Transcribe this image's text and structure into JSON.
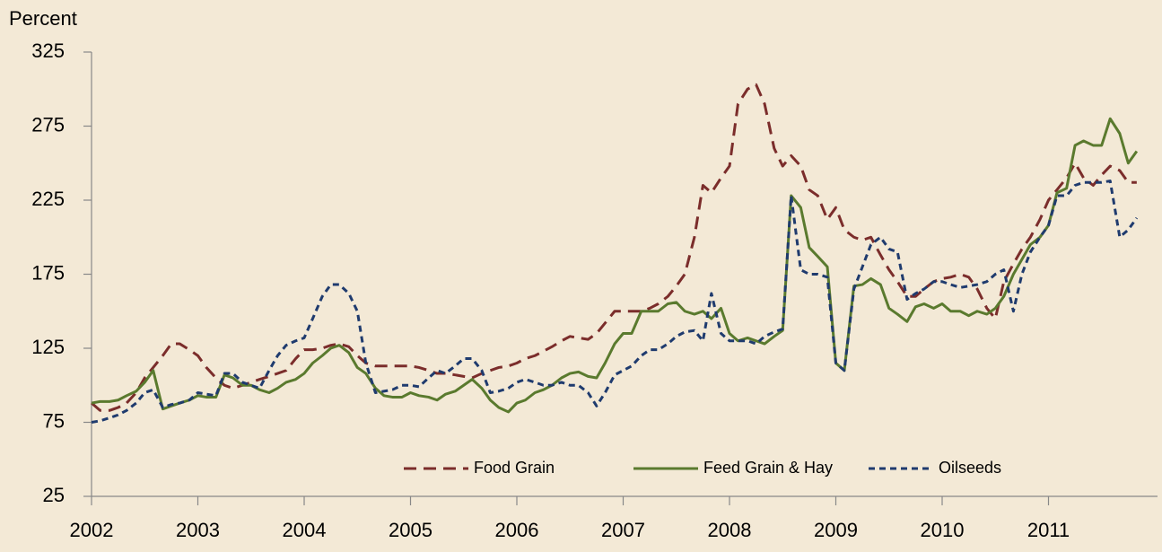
{
  "chart_data": {
    "type": "line",
    "ylabel": "Percent",
    "xlim": [
      2002,
      2012
    ],
    "xticks": [
      2002,
      2003,
      2004,
      2005,
      2006,
      2007,
      2008,
      2009,
      2010,
      2011
    ],
    "ylim": [
      25,
      325
    ],
    "yticks": [
      25,
      75,
      125,
      175,
      225,
      275,
      325
    ],
    "grid": false,
    "legend": "bottom",
    "x": [
      2002,
      2002.08,
      2002.17,
      2002.25,
      2002.33,
      2002.42,
      2002.5,
      2002.58,
      2002.67,
      2002.75,
      2002.83,
      2002.92,
      2003,
      2003.08,
      2003.17,
      2003.25,
      2003.33,
      2003.42,
      2003.5,
      2003.58,
      2003.67,
      2003.75,
      2003.83,
      2003.92,
      2004,
      2004.08,
      2004.17,
      2004.25,
      2004.33,
      2004.42,
      2004.5,
      2004.58,
      2004.67,
      2004.75,
      2004.83,
      2004.92,
      2005,
      2005.08,
      2005.17,
      2005.25,
      2005.33,
      2005.42,
      2005.5,
      2005.58,
      2005.67,
      2005.75,
      2005.83,
      2005.92,
      2006,
      2006.08,
      2006.17,
      2006.25,
      2006.33,
      2006.42,
      2006.5,
      2006.58,
      2006.67,
      2006.75,
      2006.83,
      2006.92,
      2007,
      2007.08,
      2007.17,
      2007.25,
      2007.33,
      2007.42,
      2007.5,
      2007.58,
      2007.67,
      2007.75,
      2007.83,
      2007.92,
      2008,
      2008.08,
      2008.17,
      2008.25,
      2008.33,
      2008.42,
      2008.5,
      2008.58,
      2008.67,
      2008.75,
      2008.83,
      2008.92,
      2009,
      2009.08,
      2009.17,
      2009.25,
      2009.33,
      2009.42,
      2009.5,
      2009.58,
      2009.67,
      2009.75,
      2009.83,
      2009.92,
      2010,
      2010.08,
      2010.17,
      2010.25,
      2010.33,
      2010.42,
      2010.5,
      2010.58,
      2010.67,
      2010.75,
      2010.83,
      2010.92,
      2011,
      2011.08,
      2011.17,
      2011.25,
      2011.33,
      2011.42,
      2011.5,
      2011.58,
      2011.67,
      2011.75,
      2011.83
    ],
    "series": [
      {
        "name": "Food Grain",
        "color": "#7b2d2b",
        "linestyle": "dashed",
        "values": [
          88,
          83,
          83,
          85,
          88,
          95,
          105,
          112,
          120,
          128,
          128,
          124,
          120,
          112,
          105,
          100,
          98,
          100,
          102,
          104,
          106,
          108,
          110,
          118,
          124,
          124,
          125,
          127,
          128,
          126,
          120,
          115,
          113,
          113,
          113,
          113,
          113,
          112,
          110,
          108,
          108,
          107,
          106,
          105,
          108,
          110,
          112,
          113,
          115,
          118,
          120,
          123,
          126,
          130,
          133,
          132,
          131,
          135,
          142,
          150,
          150,
          150,
          150,
          152,
          155,
          160,
          167,
          175,
          200,
          235,
          230,
          240,
          248,
          290,
          300,
          303,
          290,
          260,
          248,
          255,
          248,
          232,
          228,
          212,
          220,
          205,
          200,
          198,
          200,
          188,
          178,
          170,
          160,
          160,
          165,
          170,
          172,
          173,
          175,
          173,
          165,
          152,
          145,
          170,
          182,
          192,
          200,
          212,
          225,
          232,
          240,
          250,
          240,
          235,
          242,
          248,
          245,
          237,
          237
        ]
      },
      {
        "name": "Feed Grain & Hay",
        "color": "#5a7a2e",
        "linestyle": "solid",
        "values": [
          88,
          89,
          89,
          90,
          93,
          96,
          102,
          110,
          84,
          86,
          88,
          90,
          93,
          92,
          92,
          107,
          105,
          100,
          100,
          97,
          95,
          98,
          102,
          104,
          108,
          115,
          120,
          125,
          127,
          122,
          112,
          108,
          98,
          93,
          92,
          92,
          95,
          93,
          92,
          90,
          94,
          96,
          100,
          104,
          98,
          90,
          85,
          82,
          88,
          90,
          95,
          97,
          100,
          105,
          108,
          109,
          106,
          105,
          115,
          128,
          135,
          135,
          150,
          150,
          150,
          155,
          156,
          150,
          148,
          150,
          145,
          152,
          135,
          130,
          132,
          130,
          128,
          133,
          137,
          228,
          220,
          193,
          187,
          180,
          115,
          110,
          167,
          168,
          172,
          168,
          152,
          148,
          143,
          153,
          155,
          152,
          155,
          150,
          150,
          147,
          150,
          148,
          152,
          160,
          175,
          185,
          195,
          200,
          208,
          230,
          233,
          262,
          265,
          262,
          262,
          280,
          270,
          250,
          258
        ]
      },
      {
        "name": "Oilseeds",
        "color": "#1f3b6e",
        "linestyle": "dotted",
        "values": [
          75,
          76,
          78,
          80,
          83,
          88,
          95,
          97,
          85,
          87,
          88,
          90,
          95,
          94,
          93,
          108,
          108,
          102,
          100,
          98,
          110,
          120,
          127,
          130,
          132,
          145,
          160,
          168,
          168,
          162,
          150,
          115,
          95,
          96,
          97,
          100,
          100,
          99,
          105,
          110,
          108,
          113,
          118,
          118,
          110,
          95,
          96,
          98,
          102,
          104,
          102,
          100,
          100,
          102,
          100,
          100,
          95,
          86,
          95,
          107,
          110,
          113,
          120,
          124,
          124,
          128,
          133,
          136,
          137,
          130,
          162,
          135,
          130,
          130,
          130,
          128,
          133,
          136,
          138,
          228,
          178,
          175,
          175,
          173,
          115,
          110,
          165,
          180,
          195,
          200,
          192,
          190,
          158,
          162,
          165,
          170,
          170,
          168,
          166,
          167,
          168,
          170,
          175,
          178,
          150,
          175,
          190,
          200,
          208,
          228,
          228,
          235,
          237,
          237,
          237,
          238,
          200,
          205,
          213
        ]
      }
    ]
  }
}
